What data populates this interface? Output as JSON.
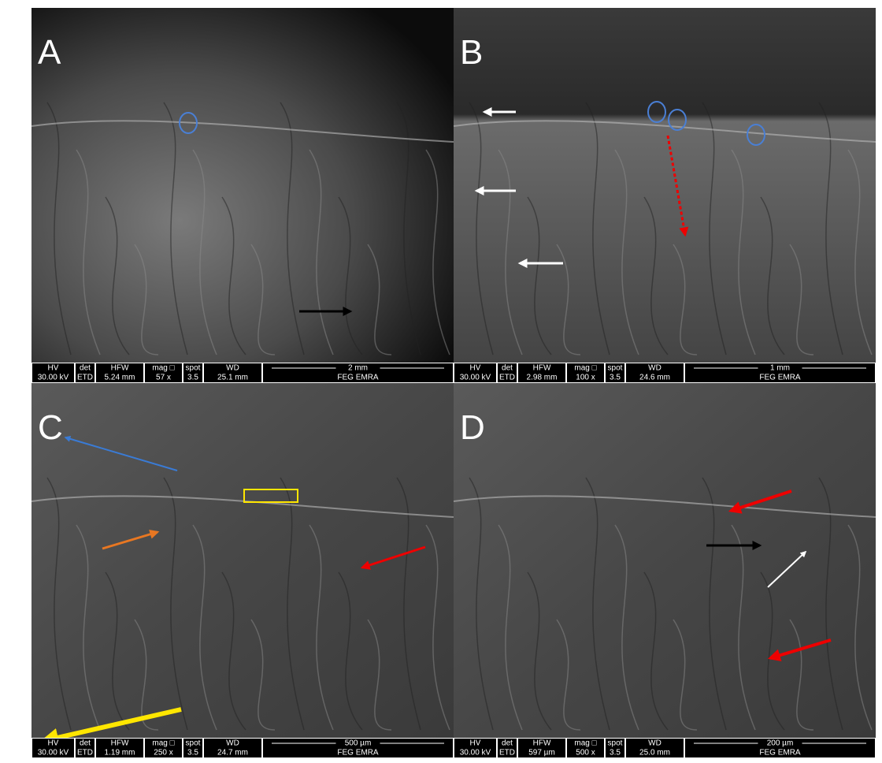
{
  "figure": {
    "headers": [
      "HV",
      "det",
      "HFW",
      "mag □",
      "spot",
      "WD"
    ],
    "panels": [
      {
        "label": "A",
        "hv": "30.00 kV",
        "det": "ETD",
        "hfw": "5.24 mm",
        "mag": "57 x",
        "spot": "3.5",
        "wd": "25.1 mm",
        "scale": "2 mm",
        "system": "FEG EMRA"
      },
      {
        "label": "B",
        "hv": "30.00 kV",
        "det": "ETD",
        "hfw": "2.98 mm",
        "mag": "100 x",
        "spot": "3.5",
        "wd": "24.6 mm",
        "scale": "1 mm",
        "system": "FEG EMRA"
      },
      {
        "label": "C",
        "hv": "30.00 kV",
        "det": "ETD",
        "hfw": "1.19 mm",
        "mag": "250 x",
        "spot": "3.5",
        "wd": "24.7 mm",
        "scale": "500 µm",
        "system": "FEG EMRA"
      },
      {
        "label": "D",
        "hv": "30.00 kV",
        "det": "ETD",
        "hfw": "597 µm",
        "mag": "500 x",
        "spot": "3.5",
        "wd": "25.0 mm",
        "scale": "200 µm",
        "system": "FEG EMRA"
      }
    ]
  }
}
